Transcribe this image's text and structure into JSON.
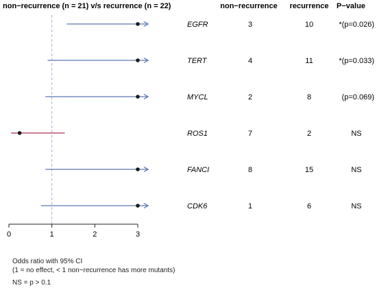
{
  "chart_data": {
    "type": "forest",
    "title": "non−recurrence (n = 21) v/s recurrence (n = 22)",
    "columns": {
      "nonrec": "non−recurrence",
      "rec": "recurrence",
      "p": "P−value"
    },
    "x_ticks": [
      "0",
      "1",
      "2",
      "3"
    ],
    "xlim": [
      0,
      3
    ],
    "reference_line": 1,
    "rows": [
      {
        "gene": "EGFR",
        "or": 3.0,
        "ci_low": 1.35,
        "ci_high": 3.0,
        "ci_clipped": true,
        "nonrec": "3",
        "rec": "10",
        "p": "*(p=0.026)",
        "color": "#5b77b0"
      },
      {
        "gene": "TERT",
        "or": 3.0,
        "ci_low": 0.9,
        "ci_high": 3.0,
        "ci_clipped": true,
        "nonrec": "4",
        "rec": "11",
        "p": "*(p=0.033)",
        "color": "#5b77b0"
      },
      {
        "gene": "MYCL",
        "or": 3.0,
        "ci_low": 0.85,
        "ci_high": 3.0,
        "ci_clipped": true,
        "nonrec": "2",
        "rec": "8",
        "p": "(p=0.069)",
        "color": "#5b77b0"
      },
      {
        "gene": "ROS1",
        "or": 0.25,
        "ci_low": 0.05,
        "ci_high": 1.3,
        "ci_clipped": false,
        "nonrec": "7",
        "rec": "2",
        "p": "NS",
        "color": "#b03050"
      },
      {
        "gene": "FANCI",
        "or": 3.0,
        "ci_low": 0.85,
        "ci_high": 3.0,
        "ci_clipped": true,
        "nonrec": "8",
        "rec": "15",
        "p": "NS",
        "color": "#5b77b0"
      },
      {
        "gene": "CDK6",
        "or": 3.0,
        "ci_low": 0.75,
        "ci_high": 3.0,
        "ci_clipped": true,
        "nonrec": "1",
        "rec": "6",
        "p": "NS",
        "color": "#5b77b0"
      }
    ]
  },
  "footnote": {
    "line1": "Odds ratio with 95% CI",
    "line2": "(1 = no effect, < 1 non−recurrence has more mutants)",
    "line3": "NS = p > 0.1"
  }
}
